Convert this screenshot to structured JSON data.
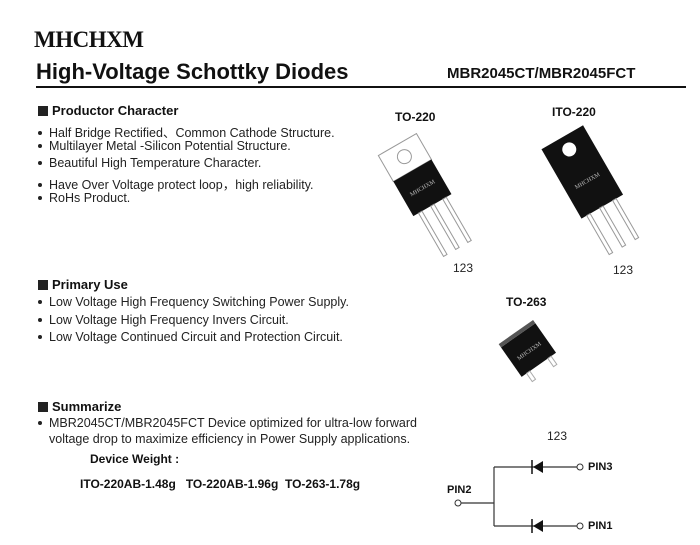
{
  "header": {
    "logo": "MHCHXM",
    "title": "High-Voltage Schottky Diodes",
    "part_number": "MBR2045CT/MBR2045FCT"
  },
  "productor_character": {
    "heading": "Productor Character",
    "items": [
      "Half Bridge Rectified、Common Cathode Structure.",
      "Multilayer Metal -Silicon Potential Structure.",
      "Beautiful High Temperature Character.",
      "Have Over Voltage protect loop，high  reliability.",
      "RoHs Product."
    ]
  },
  "primary_use": {
    "heading": "Primary Use",
    "items": [
      "Low Voltage High Frequency Switching Power Supply.",
      "Low Voltage High Frequency  Invers Circuit.",
      "Low Voltage Continued  Circuit and Protection Circuit."
    ]
  },
  "summarize": {
    "heading": "Summarize",
    "line1": "MBR2045CT/MBR2045FCT Device optimized for ultra-low forward",
    "line2": "voltage drop to maximize efficiency in Power Supply applications.",
    "weight_label": "Device Weight :",
    "weights": "ITO-220AB-1.48g   TO-220AB-1.96g  TO-263-1.78g"
  },
  "packages": [
    {
      "name": "TO-220",
      "pins": "123"
    },
    {
      "name": "ITO-220",
      "pins": "123"
    },
    {
      "name": "TO-263",
      "pins": "123"
    }
  ],
  "schematic": {
    "pin1": "PIN1",
    "pin2": "PIN2",
    "pin3": "PIN3"
  }
}
